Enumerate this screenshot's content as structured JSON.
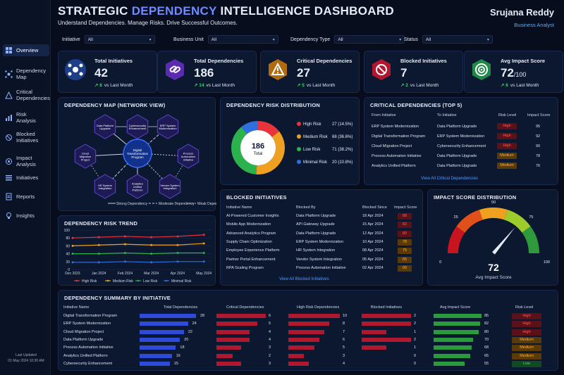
{
  "header": {
    "title_a": "STRATEGIC ",
    "title_b": "DEPENDENCY",
    "title_c": " INTELLIGENCE DASHBOARD",
    "subtitle": "Understand Dependencies. Manage Risks. Drive Successful Outcomes.",
    "user_name": "Srujana Reddy",
    "user_role": "Business Analyst"
  },
  "sidebar": {
    "items": [
      {
        "label": "Overview",
        "icon": "grid-icon"
      },
      {
        "label": "Dependency Map",
        "icon": "network-icon"
      },
      {
        "label": "Critical Dependencies",
        "icon": "alert-icon"
      },
      {
        "label": "Risk Analysis",
        "icon": "chart-icon"
      },
      {
        "label": "Blocked Initiatives",
        "icon": "block-icon"
      },
      {
        "label": "Impact Analysis",
        "icon": "target-icon"
      },
      {
        "label": "Initiatives",
        "icon": "list-icon"
      },
      {
        "label": "Reports",
        "icon": "report-icon"
      },
      {
        "label": "Insights",
        "icon": "bulb-icon"
      }
    ],
    "last_updated_label": "Last Updated",
    "last_updated_value": "01 May 2024 10:30 AM"
  },
  "filters": [
    {
      "label": "Initiative",
      "value": "All"
    },
    {
      "label": "Business Unit",
      "value": "All"
    },
    {
      "label": "Dependency Type",
      "value": "All"
    },
    {
      "label": "Status",
      "value": "All"
    }
  ],
  "kpis": [
    {
      "label": "Total Initiatives",
      "value": "42",
      "suffix": "",
      "delta": "8",
      "delta_text": "vs Last Month",
      "color": "#2f6fe0"
    },
    {
      "label": "Total Dependencies",
      "value": "186",
      "suffix": "",
      "delta": "14",
      "delta_text": "vs Last Month",
      "color": "#7b3fe0"
    },
    {
      "label": "Critical Dependencies",
      "value": "27",
      "suffix": "",
      "delta": "5",
      "delta_text": "vs Last Month",
      "color": "#e0921e"
    },
    {
      "label": "Blocked Initiatives",
      "value": "7",
      "suffix": "",
      "delta": "2",
      "delta_text": "vs Last Month",
      "color": "#e02040"
    },
    {
      "label": "Avg Impact Score",
      "value": "72",
      "suffix": "/100",
      "delta": "6",
      "delta_text": "vs Last Month",
      "color": "#27b060"
    }
  ],
  "depmap": {
    "title": "DEPENDENCY MAP (NETWORK VIEW)",
    "center": "Digital Transformation Program",
    "nodes": [
      "Data Platform Upgrade",
      "Cybersecurity Enhancement",
      "ERP System Modernization",
      "Cloud Migration Project",
      "Process Automation Initiative",
      "HR System Integration",
      "Analytics Unified Platform",
      "Vendor System Integration"
    ],
    "legend": [
      "Strong Dependency",
      "Moderate Dependency",
      "Weak Dependency"
    ]
  },
  "riskdist": {
    "title": "DEPENDENCY RISK DISTRIBUTION",
    "center_value": "186",
    "center_label": "Total",
    "items": [
      {
        "label": "High Risk",
        "value": 27,
        "pct": "(14.5%)",
        "color": "#e8343a"
      },
      {
        "label": "Medium Risk",
        "value": 68,
        "pct": "(36.6%)",
        "color": "#f0a020"
      },
      {
        "label": "Low Risk",
        "value": 71,
        "pct": "(38.2%)",
        "color": "#2bb24c"
      },
      {
        "label": "Minimal Risk",
        "value": 20,
        "pct": "(10.8%)",
        "color": "#2f6fe0"
      }
    ]
  },
  "critical": {
    "title": "CRITICAL DEPENDENCIES (TOP 5)",
    "headers": [
      "From Initiative",
      "To Initiative",
      "Risk Level",
      "Impact Score"
    ],
    "rows": [
      [
        "ERP System Modernization",
        "Data Platform Upgrade",
        "High",
        "95"
      ],
      [
        "Digital Transformation Program",
        "ERP System Modernization",
        "High",
        "92"
      ],
      [
        "Cloud Migration Project",
        "Cybersecurity Enhancement",
        "High",
        "90"
      ],
      [
        "Process Automation Initiative",
        "Data Platform Upgrade",
        "Medium",
        "78"
      ],
      [
        "Analytics Unified Platform",
        "Data Platform Upgrade",
        "Medium",
        "76"
      ]
    ],
    "link": "View All Critical Dependencies"
  },
  "trend": {
    "title": "DEPENDENCY RISK TREND"
  },
  "chart_data": {
    "type": "line",
    "x": [
      "Dec 2023",
      "Jan 2024",
      "Feb 2024",
      "Mar 2024",
      "Apr 2024",
      "May 2024"
    ],
    "ylim": [
      0,
      100
    ],
    "yticks": [
      0,
      20,
      40,
      60,
      80,
      100
    ],
    "series": [
      {
        "name": "High Risk",
        "color": "#e8343a",
        "values": [
          80,
          82,
          84,
          82,
          84,
          88
        ]
      },
      {
        "name": "Medium Risk",
        "color": "#f0a020",
        "values": [
          60,
          62,
          64,
          62,
          62,
          66
        ]
      },
      {
        "name": "Low Risk",
        "color": "#2bb24c",
        "values": [
          40,
          40,
          42,
          40,
          42,
          42
        ]
      },
      {
        "name": "Minimal Risk",
        "color": "#2f6fe0",
        "values": [
          18,
          18,
          20,
          18,
          20,
          20
        ]
      }
    ]
  },
  "blocked": {
    "title": "BLOCKED INITIATIVES",
    "headers": [
      "Initiative Name",
      "Blocked By",
      "Blocked Since",
      "Impact Score"
    ],
    "rows": [
      [
        "AI-Powered Customer Insights",
        "Data Platform Upgrade",
        "18 Apr 2024",
        "88",
        "high"
      ],
      [
        "Mobile App Modernization",
        "API Gateway Upgrade",
        "15 Apr 2024",
        "82",
        "high"
      ],
      [
        "Advanced Analytics Program",
        "Data Platform Upgrade",
        "12 Apr 2024",
        "80",
        "high"
      ],
      [
        "Supply Chain Optimization",
        "ERP System Modernization",
        "10 Apr 2024",
        "78",
        "med"
      ],
      [
        "Employee Experience Platform",
        "HR System Integration",
        "08 Apr 2024",
        "75",
        "med"
      ],
      [
        "Partner Portal Enhancement",
        "Vendor System Integration",
        "05 Apr 2024",
        "65",
        "med"
      ],
      [
        "RPA Scaling Program",
        "Process Automation Initiative",
        "02 Apr 2024",
        "60",
        "med"
      ]
    ],
    "link": "View All Blocked Initiatives"
  },
  "gauge": {
    "title": "IMPACT SCORE DISTRIBUTION",
    "value": 72,
    "value_text": "72",
    "label": "Avg Impact Score",
    "ticks": [
      "0",
      "25",
      "50",
      "75",
      "100"
    ]
  },
  "summary": {
    "title": "DEPENDENCY SUMMARY BY INITIATIVE",
    "headers": [
      "Initiative Name",
      "Total Dependencies",
      "Critical Dependencies",
      "High Risk Dependencies",
      "Blocked Initiatives",
      "Avg Impact Score",
      "Risk Level"
    ],
    "rows": [
      {
        "name": "Digital Transformation Program",
        "total": 28,
        "critical": 6,
        "highrisk": 10,
        "blocked": 2,
        "impact": 85,
        "risk": "High"
      },
      {
        "name": "ERP System Modernization",
        "total": 24,
        "critical": 5,
        "highrisk": 8,
        "blocked": 2,
        "impact": 82,
        "risk": "High"
      },
      {
        "name": "Cloud Migration Project",
        "total": 22,
        "critical": 4,
        "highrisk": 7,
        "blocked": 1,
        "impact": 80,
        "risk": "High"
      },
      {
        "name": "Data Platform Upgrade",
        "total": 20,
        "critical": 4,
        "highrisk": 6,
        "blocked": 2,
        "impact": 70,
        "risk": "Medium"
      },
      {
        "name": "Process Automation Initiative",
        "total": 18,
        "critical": 3,
        "highrisk": 5,
        "blocked": 1,
        "impact": 68,
        "risk": "Medium"
      },
      {
        "name": "Analytics Unified Platform",
        "total": 16,
        "critical": 2,
        "highrisk": 3,
        "blocked": 0,
        "impact": 65,
        "risk": "Medium"
      },
      {
        "name": "Cybersecurity Enhancement",
        "total": 15,
        "critical": 3,
        "highrisk": 4,
        "blocked": 0,
        "impact": 55,
        "risk": "Low"
      }
    ]
  }
}
